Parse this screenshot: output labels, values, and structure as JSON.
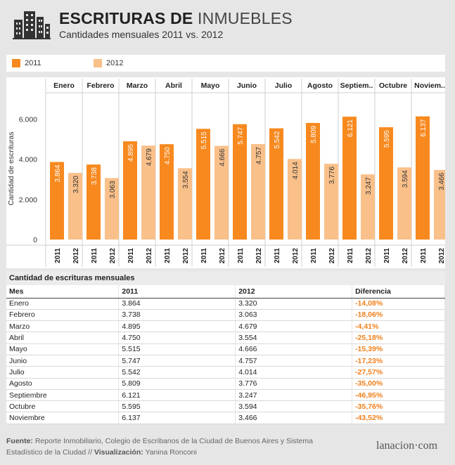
{
  "header": {
    "title_main": "ESCRITURAS DE ",
    "title_accent": "INMUEBLES",
    "subtitle": "Cantidades mensuales 2011 vs. 2012",
    "logo_icon": "buildings-icon"
  },
  "legend": {
    "items": [
      {
        "label": "2011",
        "color": "#f7891f"
      },
      {
        "label": "2012",
        "color": "#f9c08a"
      }
    ]
  },
  "chart_data": {
    "type": "bar",
    "ylabel": "Cantidad de escrituras",
    "ylim": [
      0,
      7000
    ],
    "y_ticks": [
      {
        "value": 0,
        "label": "0"
      },
      {
        "value": 2000,
        "label": "2.000"
      },
      {
        "value": 4000,
        "label": "4.000"
      },
      {
        "value": 6000,
        "label": "6.000"
      }
    ],
    "categories": [
      "Enero",
      "Febrero",
      "Marzo",
      "Abril",
      "Mayo",
      "Junio",
      "Julio",
      "Agosto",
      "Septiem..",
      "Octubre",
      "Noviem.."
    ],
    "series": [
      {
        "name": "2011",
        "color": "#f7891f",
        "values": [
          3864,
          3738,
          4895,
          4750,
          5515,
          5747,
          5542,
          5809,
          6121,
          5595,
          6137
        ],
        "labels": [
          "3.864",
          "3.738",
          "4.895",
          "4.750",
          "5.515",
          "5.747",
          "5.542",
          "5.809",
          "6.121",
          "5.595",
          "6.137"
        ]
      },
      {
        "name": "2012",
        "color": "#f9c08a",
        "values": [
          3320,
          3063,
          4679,
          3554,
          4666,
          4757,
          4014,
          3776,
          3247,
          3594,
          3466
        ],
        "labels": [
          "3.320",
          "3.063",
          "4.679",
          "3.554",
          "4.666",
          "4.757",
          "4.014",
          "3.776",
          "3.247",
          "3.594",
          "3.466"
        ]
      }
    ],
    "grid": false,
    "legend_position": "top-left"
  },
  "table": {
    "title": "Cantidad de escrituras mensuales",
    "headers": [
      "Mes",
      "2011",
      "2012",
      "Diferencia"
    ],
    "rows": [
      [
        "Enero",
        "3.864",
        "3.320",
        "-14,08%"
      ],
      [
        "Febrero",
        "3.738",
        "3.063",
        "-18,06%"
      ],
      [
        "Marzo",
        "4.895",
        "4.679",
        "-4,41%"
      ],
      [
        "Abril",
        "4.750",
        "3.554",
        "-25,18%"
      ],
      [
        "Mayo",
        "5.515",
        "4.666",
        "-15,39%"
      ],
      [
        "Junio",
        "5.747",
        "4.757",
        "-17,23%"
      ],
      [
        "Julio",
        "5.542",
        "4.014",
        "-27,57%"
      ],
      [
        "Agosto",
        "5.809",
        "3.776",
        "-35,00%"
      ],
      [
        "Septiembre",
        "6.121",
        "3.247",
        "-46,95%"
      ],
      [
        "Octubre",
        "5.595",
        "3.594",
        "-35,76%"
      ],
      [
        "Noviembre",
        "6.137",
        "3.466",
        "-43,52%"
      ]
    ]
  },
  "footer": {
    "source_label": "Fuente:",
    "source_text": " Reporte Inmobiliario, Colegio de Escribanos de la Ciudad de Buenos Aires y Sistema Estadístico de la Ciudad // ",
    "viz_label": "Visualización:",
    "viz_text": " Yanina Ronconi",
    "brand": "lanacion·com"
  }
}
